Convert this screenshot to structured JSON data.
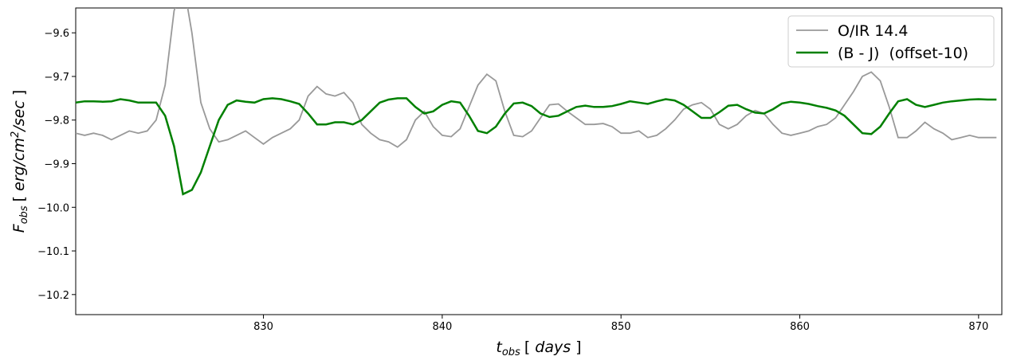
{
  "chart_data": {
    "type": "line",
    "xlabel": [
      "t",
      "obs",
      "[ ",
      "days",
      " ]"
    ],
    "ylabel": [
      "F",
      "obs",
      "[ ",
      "erg/cm",
      "2",
      "/sec",
      " ]"
    ],
    "xlim": [
      819.5,
      871.3
    ],
    "ylim": [
      -9.543,
      -10.246
    ],
    "xticks": [
      830,
      840,
      850,
      860,
      870
    ],
    "yticks": [
      {
        "value": -9.6,
        "label": "−9.6"
      },
      {
        "value": -9.7,
        "label": "−9.7"
      },
      {
        "value": -9.8,
        "label": "−9.8"
      },
      {
        "value": -9.9,
        "label": "−9.9"
      },
      {
        "value": -10.0,
        "label": "−10.0"
      },
      {
        "value": -10.1,
        "label": "−10.1"
      },
      {
        "value": -10.2,
        "label": "−10.2"
      }
    ],
    "legend": "upper right",
    "x": [
      819.5,
      820,
      820.5,
      821,
      821.5,
      822,
      822.5,
      823,
      823.5,
      824,
      824.5,
      825,
      825.5,
      826,
      826.5,
      827,
      827.5,
      828,
      828.5,
      829,
      829.5,
      830,
      830.5,
      831,
      831.5,
      832,
      832.5,
      833,
      833.5,
      834,
      834.5,
      835,
      835.5,
      836,
      836.5,
      837,
      837.5,
      838,
      838.5,
      839,
      839.5,
      840,
      840.5,
      841,
      841.5,
      842,
      842.5,
      843,
      843.5,
      844,
      844.5,
      845,
      845.5,
      846,
      846.5,
      847,
      847.5,
      848,
      848.5,
      849,
      849.5,
      850,
      850.5,
      851,
      851.5,
      852,
      852.5,
      853,
      853.5,
      854,
      854.5,
      855,
      855.5,
      856,
      856.5,
      857,
      857.5,
      858,
      858.5,
      859,
      859.5,
      860,
      860.5,
      861,
      861.5,
      862,
      862.5,
      863,
      863.5,
      864,
      864.5,
      865,
      865.5,
      866,
      866.5,
      867,
      867.5,
      868,
      868.5,
      869,
      869.5,
      870,
      870.5,
      871
    ],
    "series": [
      {
        "name": "O/IR 14.4",
        "color": "#999999",
        "values": [
          -9.83,
          -9.835,
          -9.83,
          -9.835,
          -9.845,
          -9.835,
          -9.825,
          -9.83,
          -9.825,
          -9.8,
          -9.72,
          -9.55,
          -9.48,
          -9.6,
          -9.76,
          -9.82,
          -9.85,
          -9.845,
          -9.835,
          -9.825,
          -9.84,
          -9.855,
          -9.84,
          -9.83,
          -9.82,
          -9.8,
          -9.745,
          -9.723,
          -9.74,
          -9.745,
          -9.737,
          -9.76,
          -9.81,
          -9.83,
          -9.845,
          -9.85,
          -9.862,
          -9.845,
          -9.8,
          -9.78,
          -9.815,
          -9.835,
          -9.838,
          -9.82,
          -9.77,
          -9.72,
          -9.695,
          -9.71,
          -9.78,
          -9.835,
          -9.838,
          -9.825,
          -9.795,
          -9.765,
          -9.763,
          -9.78,
          -9.795,
          -9.81,
          -9.81,
          -9.808,
          -9.815,
          -9.83,
          -9.83,
          -9.825,
          -9.84,
          -9.835,
          -9.82,
          -9.8,
          -9.775,
          -9.765,
          -9.76,
          -9.775,
          -9.81,
          -9.82,
          -9.81,
          -9.79,
          -9.778,
          -9.785,
          -9.81,
          -9.83,
          -9.835,
          -9.83,
          -9.825,
          -9.815,
          -9.81,
          -9.795,
          -9.765,
          -9.735,
          -9.7,
          -9.69,
          -9.71,
          -9.77,
          -9.84,
          -9.84,
          -9.825,
          -9.805,
          -9.82,
          -9.83,
          -9.845,
          -9.84,
          -9.835,
          -9.84,
          -9.84,
          -9.84
        ]
      },
      {
        "name": "(B - J)  (offset-10)",
        "color": "#008000",
        "values": [
          -9.76,
          -9.757,
          -9.757,
          -9.758,
          -9.757,
          -9.752,
          -9.755,
          -9.76,
          -9.76,
          -9.76,
          -9.79,
          -9.86,
          -9.97,
          -9.96,
          -9.92,
          -9.86,
          -9.8,
          -9.765,
          -9.755,
          -9.758,
          -9.76,
          -9.752,
          -9.75,
          -9.752,
          -9.757,
          -9.763,
          -9.785,
          -9.81,
          -9.81,
          -9.805,
          -9.805,
          -9.81,
          -9.8,
          -9.78,
          -9.76,
          -9.753,
          -9.75,
          -9.75,
          -9.77,
          -9.785,
          -9.78,
          -9.765,
          -9.757,
          -9.76,
          -9.79,
          -9.825,
          -9.83,
          -9.815,
          -9.785,
          -9.762,
          -9.76,
          -9.768,
          -9.785,
          -9.793,
          -9.79,
          -9.78,
          -9.77,
          -9.767,
          -9.77,
          -9.77,
          -9.768,
          -9.763,
          -9.757,
          -9.76,
          -9.763,
          -9.757,
          -9.752,
          -9.755,
          -9.765,
          -9.78,
          -9.795,
          -9.795,
          -9.782,
          -9.767,
          -9.765,
          -9.775,
          -9.783,
          -9.785,
          -9.775,
          -9.762,
          -9.758,
          -9.76,
          -9.763,
          -9.768,
          -9.772,
          -9.778,
          -9.79,
          -9.81,
          -9.83,
          -9.832,
          -9.815,
          -9.785,
          -9.757,
          -9.752,
          -9.765,
          -9.77,
          -9.765,
          -9.76,
          -9.757,
          -9.755,
          -9.753,
          -9.752,
          -9.753,
          -9.753
        ]
      }
    ]
  }
}
